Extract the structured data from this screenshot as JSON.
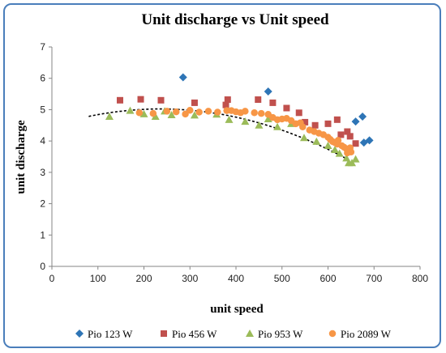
{
  "chart_data": {
    "type": "scatter",
    "title": "Unit discharge vs Unit speed",
    "xlabel": "unit speed",
    "ylabel": "unit discharge",
    "xlim": [
      0,
      800
    ],
    "ylim": [
      0,
      7
    ],
    "xticks": [
      "0",
      "100",
      "200",
      "300",
      "400",
      "500",
      "600",
      "700",
      "800"
    ],
    "yticks": [
      "0",
      "1",
      "2",
      "3",
      "4",
      "5",
      "6",
      "7"
    ],
    "grid": false,
    "legend": "bottom",
    "trendline": {
      "style": "dotted",
      "color": "#000000",
      "x_range": [
        80,
        640
      ],
      "coefficients": [
        4.48,
        0.00459,
        -9.72e-06
      ]
    },
    "series": [
      {
        "name": "Pio 123 W",
        "marker": "diamond",
        "color": "#2e75b6",
        "points": [
          [
            285,
            6.03
          ],
          [
            470,
            5.58
          ],
          [
            660,
            4.62
          ],
          [
            675,
            4.78
          ],
          [
            690,
            4.02
          ],
          [
            678,
            3.95
          ]
        ]
      },
      {
        "name": "Pio 456 W",
        "marker": "square",
        "color": "#c0504d",
        "points": [
          [
            148,
            5.3
          ],
          [
            193,
            5.33
          ],
          [
            237,
            5.3
          ],
          [
            310,
            5.22
          ],
          [
            378,
            5.15
          ],
          [
            382,
            5.32
          ],
          [
            448,
            5.32
          ],
          [
            480,
            5.22
          ],
          [
            510,
            5.05
          ],
          [
            537,
            4.9
          ],
          [
            550,
            4.6
          ],
          [
            572,
            4.5
          ],
          [
            600,
            4.55
          ],
          [
            620,
            4.68
          ],
          [
            628,
            4.2
          ],
          [
            642,
            4.3
          ],
          [
            660,
            3.92
          ],
          [
            648,
            4.15
          ]
        ]
      },
      {
        "name": "Pio 953 W",
        "marker": "triangle",
        "color": "#9bbb59",
        "points": [
          [
            125,
            4.78
          ],
          [
            170,
            4.97
          ],
          [
            200,
            4.86
          ],
          [
            225,
            4.78
          ],
          [
            245,
            4.95
          ],
          [
            260,
            4.83
          ],
          [
            310,
            4.82
          ],
          [
            358,
            4.85
          ],
          [
            385,
            4.68
          ],
          [
            420,
            4.62
          ],
          [
            450,
            4.5
          ],
          [
            470,
            4.7
          ],
          [
            490,
            4.45
          ],
          [
            520,
            4.55
          ],
          [
            548,
            4.1
          ],
          [
            575,
            3.98
          ],
          [
            600,
            3.85
          ],
          [
            615,
            3.72
          ],
          [
            625,
            3.6
          ],
          [
            640,
            3.45
          ],
          [
            645,
            3.3
          ],
          [
            652,
            3.3
          ],
          [
            660,
            3.42
          ]
        ]
      },
      {
        "name": "Pio 2089 W",
        "marker": "circle",
        "color": "#f79646",
        "points": [
          [
            190,
            4.9
          ],
          [
            220,
            4.88
          ],
          [
            250,
            4.95
          ],
          [
            270,
            4.93
          ],
          [
            290,
            4.86
          ],
          [
            300,
            4.98
          ],
          [
            320,
            4.92
          ],
          [
            340,
            4.95
          ],
          [
            360,
            4.92
          ],
          [
            380,
            4.97
          ],
          [
            390,
            4.97
          ],
          [
            400,
            4.93
          ],
          [
            410,
            4.9
          ],
          [
            420,
            4.95
          ],
          [
            440,
            4.9
          ],
          [
            455,
            4.88
          ],
          [
            470,
            4.85
          ],
          [
            480,
            4.75
          ],
          [
            490,
            4.68
          ],
          [
            500,
            4.7
          ],
          [
            510,
            4.72
          ],
          [
            520,
            4.65
          ],
          [
            530,
            4.55
          ],
          [
            540,
            4.58
          ],
          [
            545,
            4.45
          ],
          [
            560,
            4.35
          ],
          [
            570,
            4.3
          ],
          [
            580,
            4.25
          ],
          [
            590,
            4.2
          ],
          [
            600,
            4.12
          ],
          [
            605,
            4.05
          ],
          [
            610,
            3.98
          ],
          [
            615,
            3.95
          ],
          [
            620,
            3.9
          ],
          [
            622,
            4.02
          ],
          [
            630,
            3.85
          ],
          [
            635,
            3.8
          ],
          [
            640,
            3.75
          ],
          [
            642,
            3.62
          ],
          [
            645,
            3.7
          ],
          [
            648,
            3.78
          ],
          [
            650,
            3.65
          ]
        ]
      }
    ]
  }
}
